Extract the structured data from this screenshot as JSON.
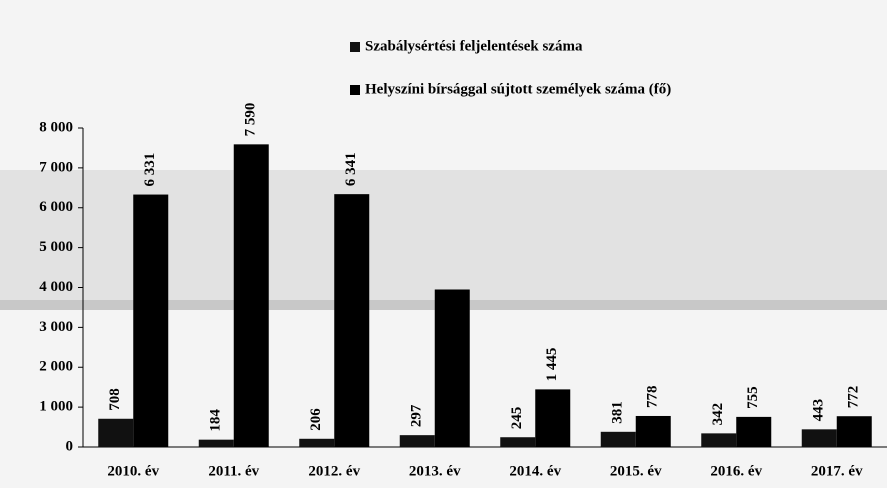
{
  "chart_data": {
    "type": "bar",
    "categories": [
      "2010. év",
      "2011. év",
      "2012. év",
      "2013. év",
      "2014. év",
      "2015. év",
      "2016. év",
      "2017. év"
    ],
    "series": [
      {
        "name": "Szabálysértési feljelentések száma",
        "color": "#111111",
        "values": [
          708,
          184,
          206,
          297,
          245,
          381,
          342,
          443
        ],
        "value_labels": [
          "708",
          "184",
          "206",
          "297",
          "245",
          "381",
          "342",
          "443"
        ]
      },
      {
        "name": "Helyszíni bírsággal sújtott személyek száma (fő)",
        "color": "#000000",
        "values": [
          6331,
          7590,
          6341,
          3950,
          1445,
          778,
          755,
          772
        ],
        "value_labels": [
          "6 331",
          "7 590",
          "6 341",
          null,
          "1 445",
          "778",
          "755",
          "772"
        ]
      }
    ],
    "ylim": [
      0,
      8000
    ],
    "yticks": [
      0,
      {
        "value": 1000,
        "label": "1 000"
      },
      {
        "value": 2000,
        "label": "2 000"
      },
      {
        "value": 3000,
        "label": "3 000"
      },
      {
        "value": 4000,
        "label": "4 000"
      },
      {
        "value": 5000,
        "label": "5 000"
      },
      {
        "value": 6000,
        "label": "6 000"
      },
      {
        "value": 7000,
        "label": "7 000"
      },
      {
        "value": 8000,
        "label": "8 000"
      }
    ]
  }
}
